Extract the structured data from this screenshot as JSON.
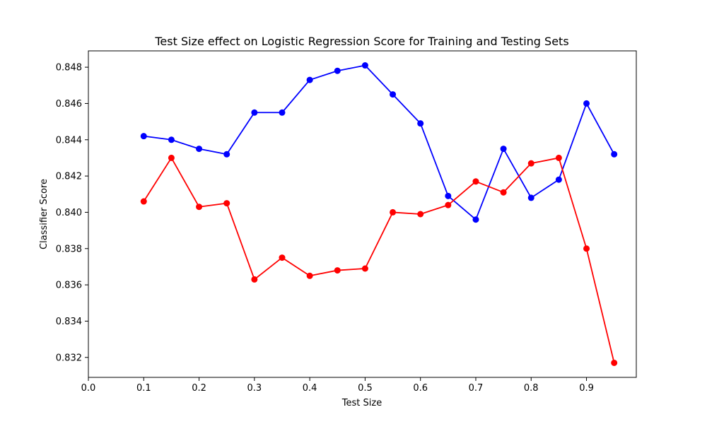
{
  "chart_data": {
    "type": "line",
    "title": "Test Size effect on Logistic Regression Score for Training and Testing Sets",
    "xlabel": "Test Size",
    "ylabel": "Classifier Score",
    "xlim": [
      0.0,
      0.99
    ],
    "ylim": [
      0.8309,
      0.8489
    ],
    "xticks": [
      "0.0",
      "0.1",
      "0.2",
      "0.3",
      "0.4",
      "0.5",
      "0.6",
      "0.7",
      "0.8",
      "0.9"
    ],
    "yticks": [
      "0.832",
      "0.834",
      "0.836",
      "0.838",
      "0.840",
      "0.842",
      "0.844",
      "0.846",
      "0.848"
    ],
    "grid": false,
    "legend": "none",
    "x": [
      0.1,
      0.15,
      0.2,
      0.25,
      0.3,
      0.35,
      0.4,
      0.45,
      0.5,
      0.55,
      0.6,
      0.65,
      0.7,
      0.75,
      0.8,
      0.85,
      0.9,
      0.95
    ],
    "series": [
      {
        "color": "#0000ff",
        "marker": "circle",
        "values": [
          0.8442,
          0.844,
          0.8435,
          0.8432,
          0.8455,
          0.8455,
          0.8473,
          0.8478,
          0.8481,
          0.8465,
          0.8449,
          0.8409,
          0.8396,
          0.8435,
          0.8408,
          0.8418,
          0.846,
          0.8432
        ]
      },
      {
        "color": "#ff0000",
        "marker": "circle",
        "values": [
          0.8406,
          0.843,
          0.8403,
          0.8405,
          0.8363,
          0.8375,
          0.8365,
          0.8368,
          0.8369,
          0.84,
          0.8399,
          0.8404,
          0.8417,
          0.8411,
          0.8427,
          0.843,
          0.838,
          0.8317
        ]
      }
    ]
  }
}
